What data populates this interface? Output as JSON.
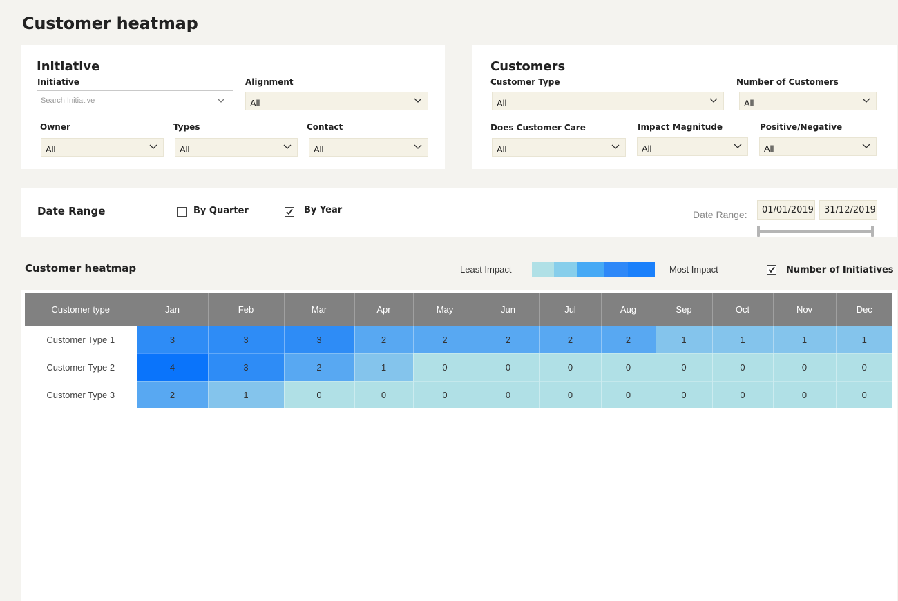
{
  "page": {
    "title": "Customer heatmap"
  },
  "initiative_panel": {
    "title": "Initiative",
    "initiative": {
      "label": "Initiative",
      "placeholder": "Search Initiative"
    },
    "alignment": {
      "label": "Alignment",
      "value": "All"
    },
    "owner": {
      "label": "Owner",
      "value": "All"
    },
    "types": {
      "label": "Types",
      "value": "All"
    },
    "contact": {
      "label": "Contact",
      "value": "All"
    }
  },
  "customers_panel": {
    "title": "Customers",
    "customer_type": {
      "label": "Customer Type",
      "value": "All"
    },
    "number_of_customers": {
      "label": "Number of Customers",
      "value": "All"
    },
    "does_customer_care": {
      "label": "Does Customer Care",
      "value": "All"
    },
    "impact_magnitude": {
      "label": "Impact Magnitude",
      "value": "All"
    },
    "positive_negative": {
      "label": "Positive/Negative",
      "value": "All"
    }
  },
  "date_panel": {
    "title": "Date Range",
    "by_quarter": {
      "label": "By Quarter",
      "checked": false
    },
    "by_year": {
      "label": "By Year",
      "checked": true
    },
    "range_label": "Date Range:",
    "start": "01/01/2019",
    "end": "31/12/2019"
  },
  "heatmap": {
    "title": "Customer heatmap",
    "legend_low": "Least Impact",
    "legend_high": "Most Impact",
    "legend_colors": [
      "#b0e0e6",
      "#87ceeb",
      "#46a9f5",
      "#2e88f8",
      "#1a80fb"
    ],
    "number_of_initiatives": {
      "label": "Number of Initiatives",
      "checked": true
    },
    "header_first": "Customer type",
    "months": [
      "Jan",
      "Feb",
      "Mar",
      "Apr",
      "May",
      "Jun",
      "Jul",
      "Aug",
      "Sep",
      "Oct",
      "Nov",
      "Dec"
    ],
    "rows": [
      {
        "label": "Customer Type 1",
        "values": [
          3,
          3,
          3,
          2,
          2,
          2,
          2,
          2,
          1,
          1,
          1,
          1
        ]
      },
      {
        "label": "Customer Type 2",
        "values": [
          4,
          3,
          2,
          1,
          0,
          0,
          0,
          0,
          0,
          0,
          0,
          0
        ]
      },
      {
        "label": "Customer Type 3",
        "values": [
          2,
          1,
          0,
          0,
          0,
          0,
          0,
          0,
          0,
          0,
          0,
          0
        ]
      }
    ],
    "value_colors": {
      "0": "#b0e0e6",
      "1": "#84c4ec",
      "2": "#58a8f2",
      "3": "#2e8cf6",
      "4": "#0a74fb"
    }
  }
}
